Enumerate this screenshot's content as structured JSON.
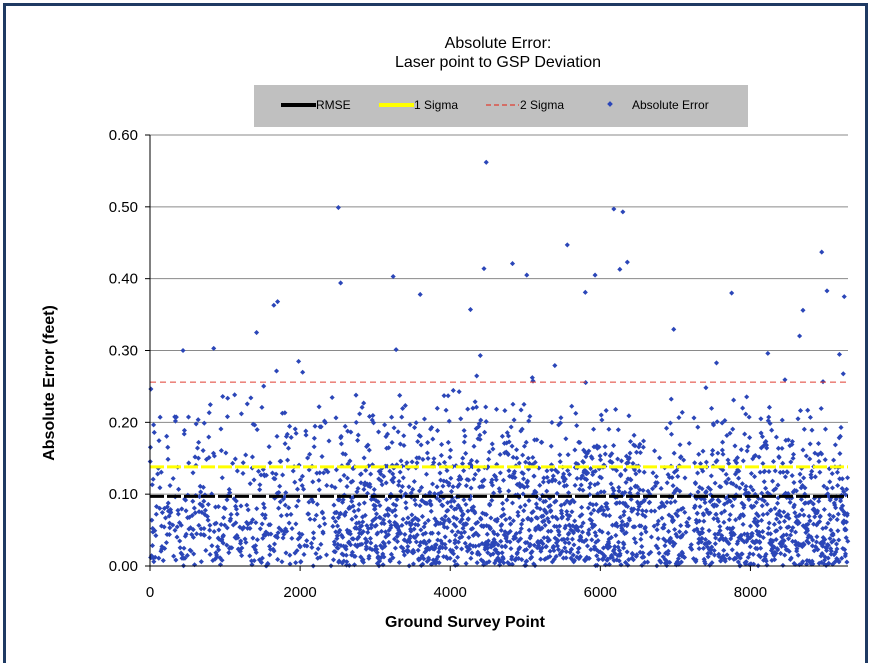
{
  "chart_data": {
    "type": "scatter",
    "title": "Absolute Error:",
    "subtitle": "Laser point to GSP Deviation",
    "xlabel": "Ground Survey Point",
    "ylabel": "Absolute Error  (feet)",
    "xlim": [
      0,
      9300
    ],
    "ylim": [
      0,
      0.6
    ],
    "x_ticks": [
      0,
      2000,
      4000,
      6000,
      8000
    ],
    "x_tick_labels": [
      "0",
      "2000",
      "4000",
      "6000",
      "8000"
    ],
    "y_ticks": [
      0.0,
      0.1,
      0.2,
      0.3,
      0.4,
      0.5,
      0.6
    ],
    "y_tick_labels": [
      "0.00",
      "0.10",
      "0.20",
      "0.30",
      "0.40",
      "0.50",
      "0.60"
    ],
    "grid": "horizontal",
    "legend_position": "top",
    "series": [
      {
        "name": "RMSE",
        "kind": "hline",
        "value": 0.097,
        "color": "#000000",
        "style": "solid"
      },
      {
        "name": "1 Sigma",
        "kind": "hline",
        "value": 0.138,
        "color": "#ffff00",
        "style": "solid"
      },
      {
        "name": "2 Sigma",
        "kind": "hline",
        "value": 0.256,
        "color": "#e03c31",
        "style": "dashed"
      },
      {
        "name": "Absolute Error",
        "kind": "scatter",
        "color": "#2b46b8",
        "n_points": 9300,
        "outliers": [
          {
            "x": 2510,
            "y": 0.499
          },
          {
            "x": 4480,
            "y": 0.562
          },
          {
            "x": 6180,
            "y": 0.497
          },
          {
            "x": 6300,
            "y": 0.493
          },
          {
            "x": 5560,
            "y": 0.447
          },
          {
            "x": 8950,
            "y": 0.437
          },
          {
            "x": 4830,
            "y": 0.421
          },
          {
            "x": 4450,
            "y": 0.414
          },
          {
            "x": 3240,
            "y": 0.403
          },
          {
            "x": 5020,
            "y": 0.405
          },
          {
            "x": 6360,
            "y": 0.423
          },
          {
            "x": 5930,
            "y": 0.405
          },
          {
            "x": 1700,
            "y": 0.368
          },
          {
            "x": 1650,
            "y": 0.363
          },
          {
            "x": 2540,
            "y": 0.394
          },
          {
            "x": 3600,
            "y": 0.378
          },
          {
            "x": 6260,
            "y": 0.413
          },
          {
            "x": 7750,
            "y": 0.38
          },
          {
            "x": 9020,
            "y": 0.383
          },
          {
            "x": 9250,
            "y": 0.375
          },
          {
            "x": 440,
            "y": 0.3
          },
          {
            "x": 4270,
            "y": 0.357
          },
          {
            "x": 5800,
            "y": 0.381
          },
          {
            "x": 8700,
            "y": 0.356
          },
          {
            "x": 1420,
            "y": 0.325
          }
        ]
      }
    ],
    "legend": [
      "RMSE",
      "1 Sigma",
      "2 Sigma",
      "Absolute Error"
    ],
    "colors": {
      "frame": "#1f3a63",
      "legend_bg": "#c0c0c0",
      "grid": "#8a8a8a",
      "points": "#2b46b8"
    }
  }
}
